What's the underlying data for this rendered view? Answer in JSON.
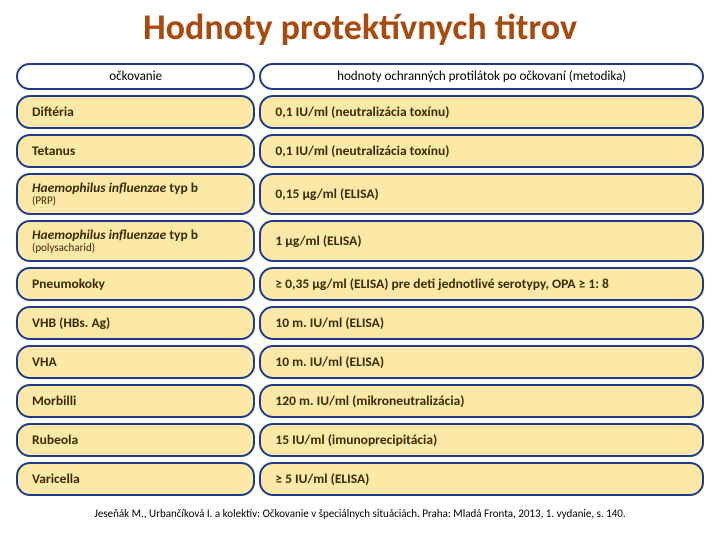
{
  "title": "Hodnoty protektívnych titrov",
  "headers": {
    "left": "očkovanie",
    "right": "hodnoty ochranných protilátok po očkovaní (metodika)"
  },
  "row_bg_colors": {
    "header": "#ffffff",
    "body": "#fce9a8"
  },
  "border_color": "#1f3a8a",
  "rows": [
    {
      "name": "Diftéria",
      "sub": "",
      "italic": false,
      "value": "0,1 IU/ml (neutralizácia toxínu)"
    },
    {
      "name": "Tetanus",
      "sub": "",
      "italic": false,
      "value": "0,1 IU/ml (neutralizácia toxínu)"
    },
    {
      "name": "Haemophilus influenzae",
      "tail": " typ b",
      "sub": "(PRP)",
      "italic": true,
      "value": "0,15 µg/ml (ELISA)"
    },
    {
      "name": "Haemophilus influenzae",
      "tail": " typ b",
      "sub": "(polysacharid)",
      "italic": true,
      "value": "1 µg/ml (ELISA)"
    },
    {
      "name": "Pneumokoky",
      "sub": "",
      "italic": false,
      "value": "≥ 0,35 µg/ml (ELISA) pre deti jednotlivé serotypy, OPA ≥ 1: 8"
    },
    {
      "name": "VHB (HBs. Ag)",
      "sub": "",
      "italic": false,
      "value": "10 m. IU/ml (ELISA)"
    },
    {
      "name": "VHA",
      "sub": "",
      "italic": false,
      "value": "10 m. IU/ml (ELISA)"
    },
    {
      "name": "Morbilli",
      "sub": "",
      "italic": false,
      "value": "120 m. IU/ml (mikroneutralizácia)"
    },
    {
      "name": "Rubeola",
      "sub": "",
      "italic": false,
      "value": "15 IU/ml (imunoprecipitácia)"
    },
    {
      "name": "Varicella",
      "sub": "",
      "italic": false,
      "value": "≥ 5 IU/ml (ELISA)"
    }
  ],
  "citation": "Jeseňák M., Urbančíková I. a kolektív: Očkovanie v špeciálnych situáciách. Praha: Mladá Fronta, 2013, 1. vydanie, s. 140."
}
